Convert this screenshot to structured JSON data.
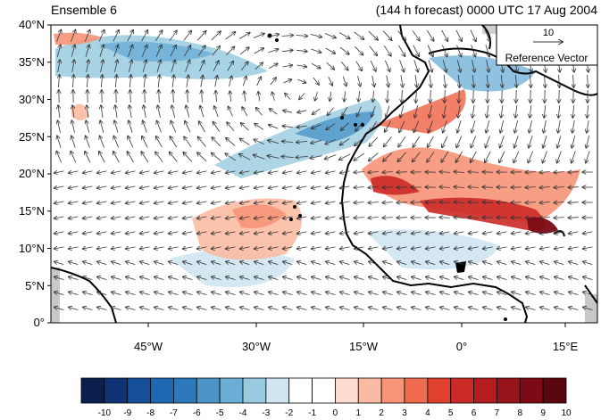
{
  "header": {
    "left_title": "Ensemble 6",
    "right_title": "(144 h forecast) 0000 UTC 17 Aug 2004"
  },
  "reference_vector": {
    "magnitude": "10",
    "label": "Reference Vector"
  },
  "axes": {
    "lat_ticks": [
      "40°N",
      "35°N",
      "30°N",
      "25°N",
      "20°N",
      "15°N",
      "10°N",
      "5°N",
      "0°"
    ],
    "lon_ticks": [
      "45°W",
      "30°W",
      "15°W",
      "0°",
      "15°E"
    ]
  },
  "colorbar": {
    "labels": [
      "-10",
      "-9",
      "-8",
      "-7",
      "-6",
      "-5",
      "-4",
      "-3",
      "-2",
      "-1",
      "0",
      "1",
      "2",
      "3",
      "4",
      "5",
      "6",
      "7",
      "8",
      "9",
      "10"
    ],
    "colors": [
      "#0a1f4d",
      "#0f3275",
      "#16509b",
      "#1f67b0",
      "#2b78bb",
      "#4b95c9",
      "#6aaed6",
      "#98cbe0",
      "#cfe6f2",
      "#ffffff",
      "#ffffff",
      "#fddbcf",
      "#fbbba3",
      "#f79478",
      "#f06a4d",
      "#e2402f",
      "#cb2a26",
      "#b51c1f",
      "#99131b",
      "#7c0b15",
      "#5a0710"
    ]
  }
}
